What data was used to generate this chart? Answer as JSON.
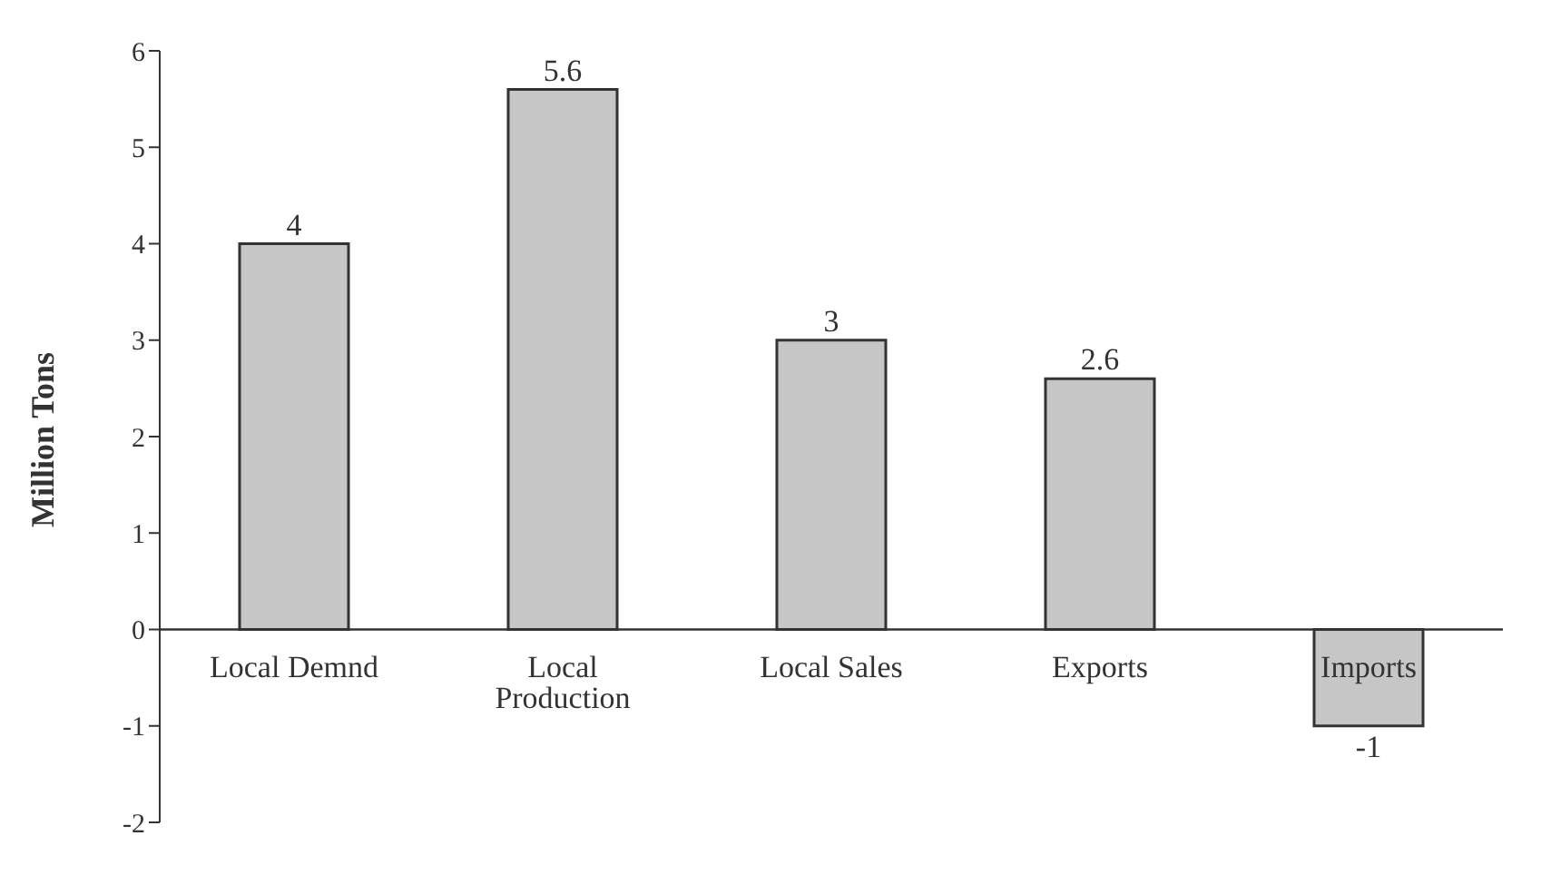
{
  "chart_data": {
    "type": "bar",
    "ylabel": "Million Tons",
    "categories": [
      "Local Demnd",
      "Local Production",
      "Local Sales",
      "Exports",
      "Imports"
    ],
    "values": [
      4,
      5.6,
      3,
      2.6,
      -1
    ],
    "color": "#c6c6c6",
    "ylim": [
      -2,
      6
    ],
    "yticks": [
      -2,
      -1,
      0,
      1,
      2,
      3,
      4,
      5,
      6
    ],
    "data_labels": true,
    "grid": false,
    "legend": false
  }
}
